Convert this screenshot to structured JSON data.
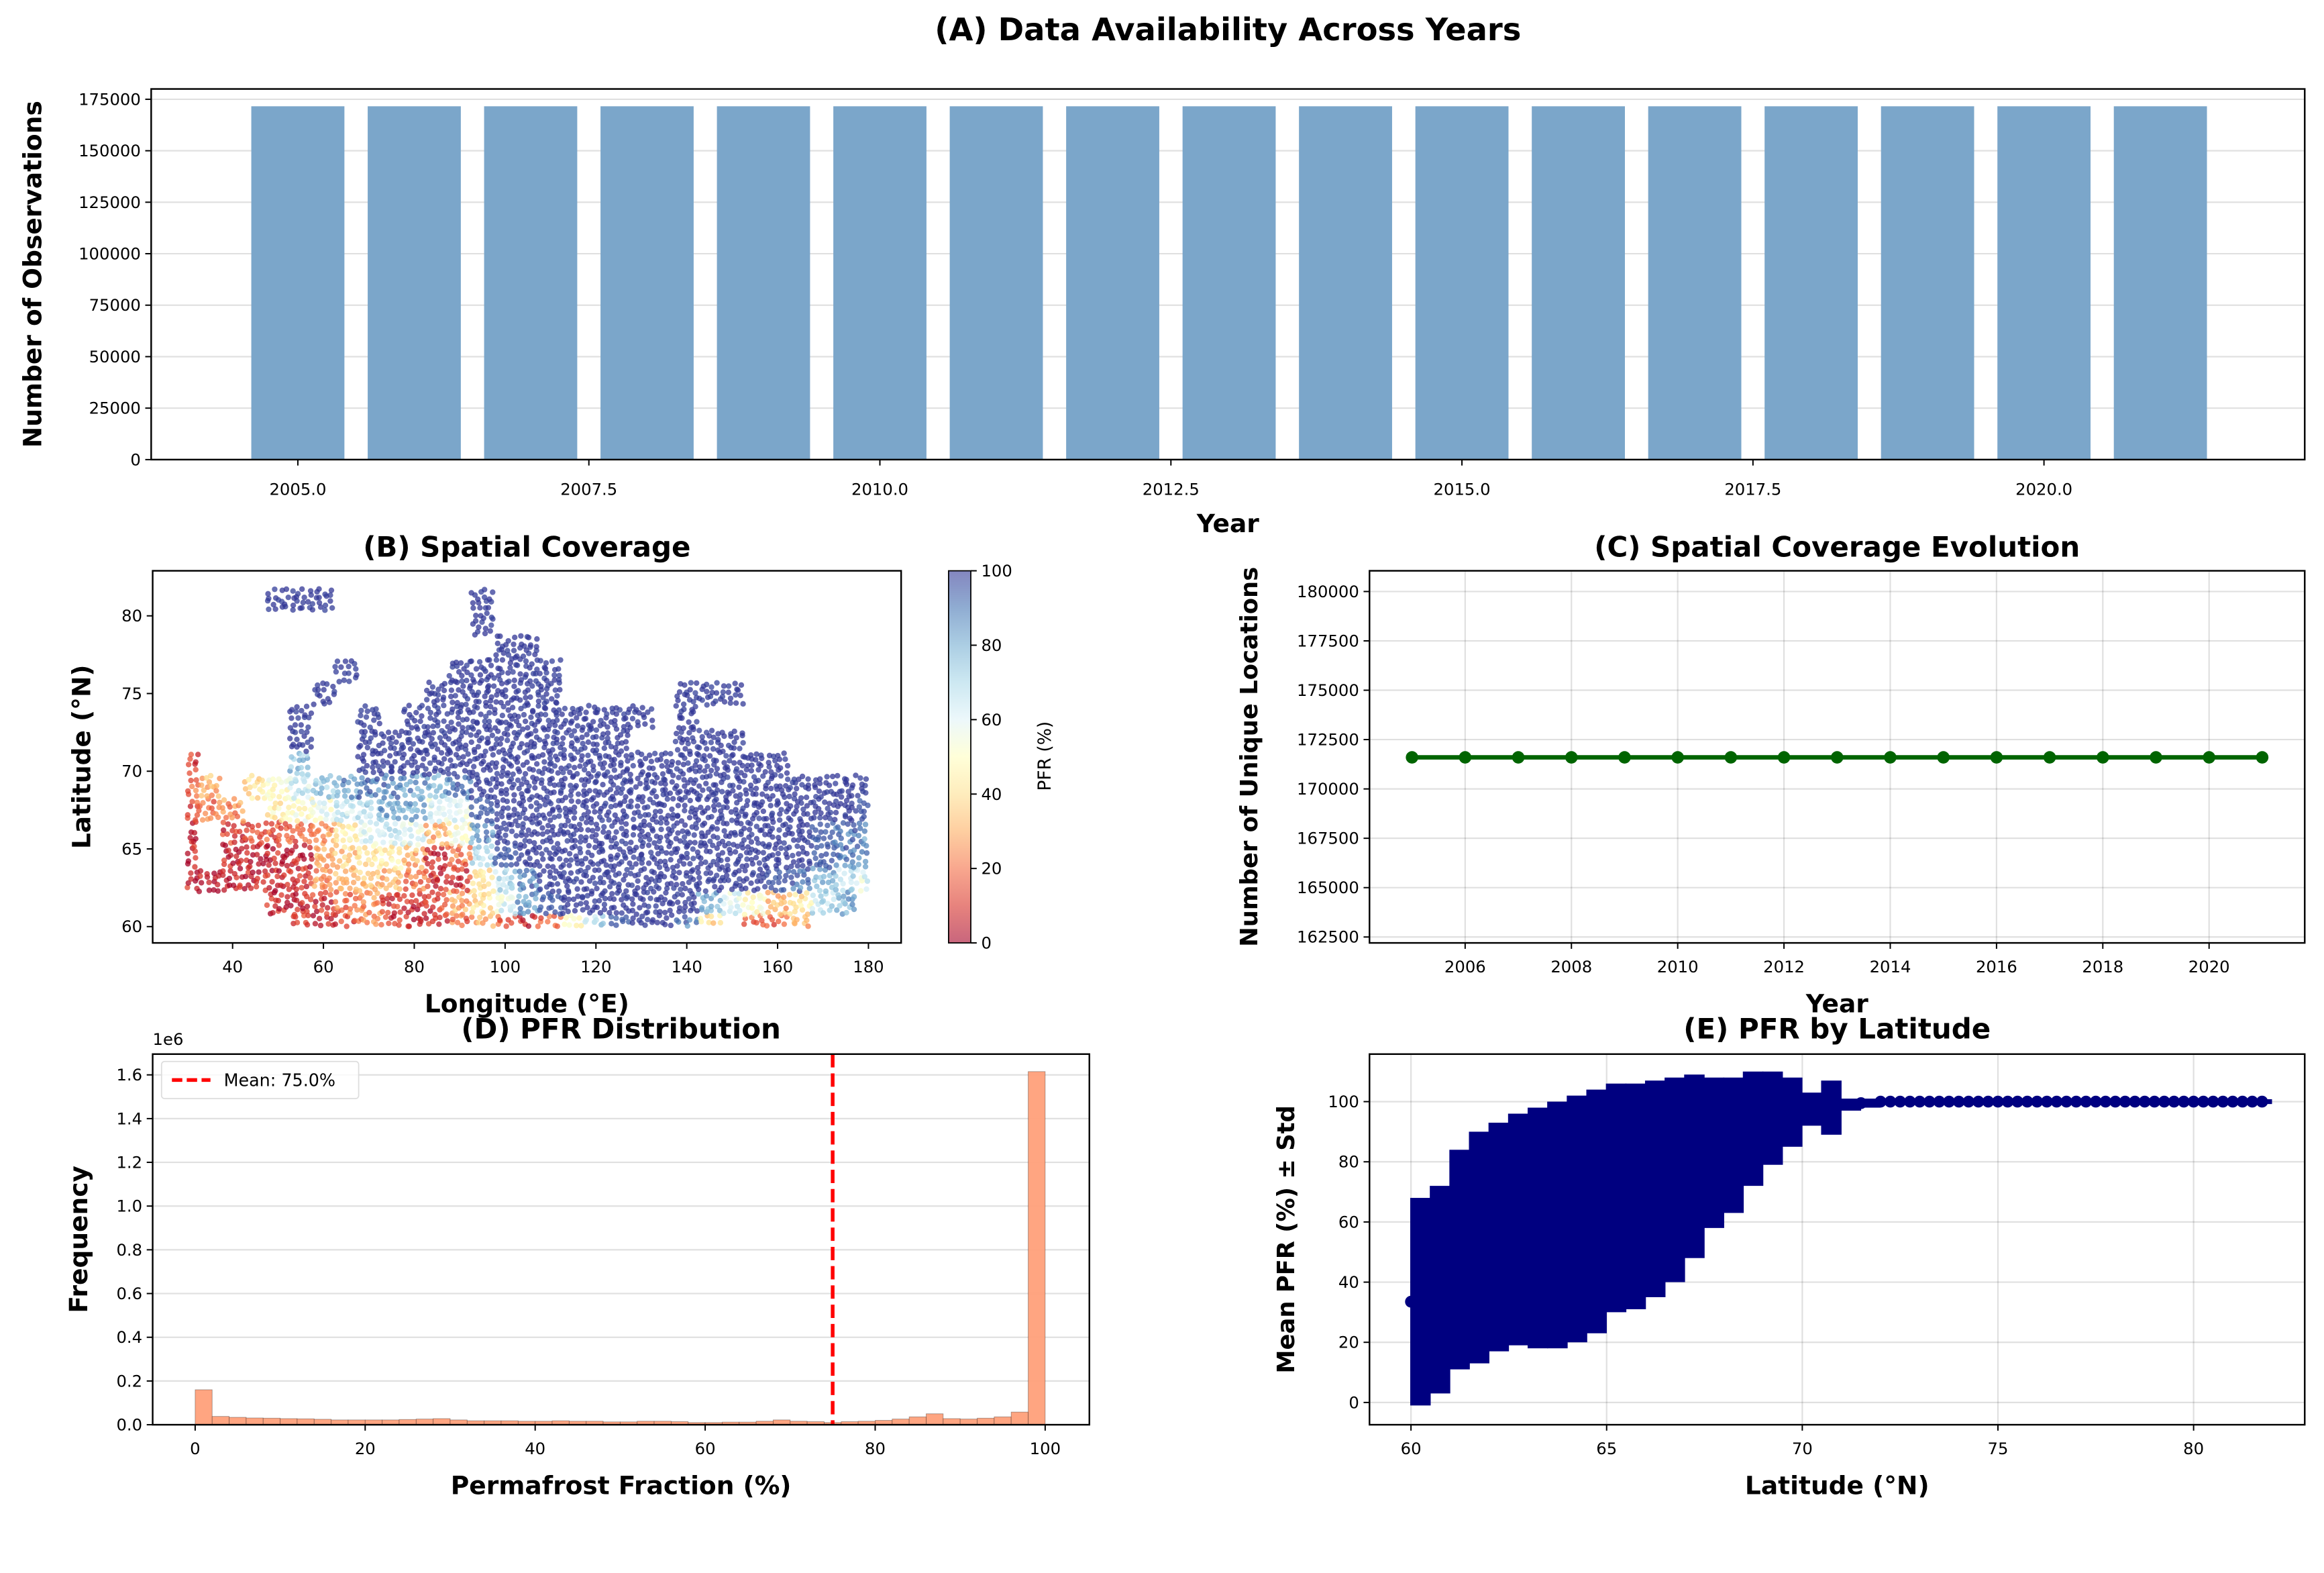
{
  "chart_data": [
    {
      "panel": "A",
      "type": "bar",
      "title": "(A) Data Availability Across Years",
      "xlabel": "Year",
      "ylabel": "Number of Observations",
      "categories": [
        2005,
        2006,
        2007,
        2008,
        2009,
        2010,
        2011,
        2012,
        2013,
        2014,
        2015,
        2016,
        2017,
        2018,
        2019,
        2020,
        2021
      ],
      "values": [
        171600,
        171600,
        171600,
        171600,
        171600,
        171600,
        171600,
        171600,
        171600,
        171600,
        171600,
        171600,
        171600,
        171600,
        171600,
        171600,
        171600
      ],
      "xlim": [
        2003.74,
        2022.24
      ],
      "ylim": [
        0,
        180000
      ],
      "xticks": [
        2005,
        2007.5,
        2010,
        2012.5,
        2015,
        2017.5,
        2020
      ],
      "xtick_labels": [
        "2005.0",
        "2007.5",
        "2010.0",
        "2012.5",
        "2015.0",
        "2017.5",
        "2020.0"
      ],
      "yticks": [
        0,
        25000,
        50000,
        75000,
        100000,
        125000,
        150000,
        175000
      ],
      "ytick_labels": [
        "0",
        "25000",
        "50000",
        "75000",
        "100000",
        "125000",
        "150000",
        "175000"
      ],
      "grid": "y",
      "color": "#7BA6CA"
    },
    {
      "panel": "B",
      "type": "scatter",
      "title": "(B) Spatial Coverage",
      "xlabel": "Longitude (°E)",
      "ylabel": "Latitude (°N)",
      "xlim": [
        22.4,
        187.2
      ],
      "ylim": [
        58.95,
        82.9
      ],
      "xticks": [
        40,
        60,
        80,
        100,
        120,
        140,
        160,
        180
      ],
      "xtick_labels": [
        "40",
        "60",
        "80",
        "100",
        "120",
        "140",
        "160",
        "180"
      ],
      "yticks": [
        60,
        65,
        70,
        75,
        80
      ],
      "ytick_labels": [
        "60",
        "65",
        "70",
        "75",
        "80"
      ],
      "grid": "none",
      "colormap": "RdYlBu",
      "colorbar": {
        "label": "PFR (%)",
        "range": [
          0,
          100
        ],
        "ticks": [
          0,
          20,
          40,
          60,
          80,
          100
        ],
        "tick_labels": [
          "0",
          "20",
          "40",
          "60",
          "80",
          "100"
        ]
      },
      "lats": [
        60,
        61.5,
        63,
        64.5,
        66,
        67.5,
        69,
        70.5,
        72,
        73.5,
        75,
        76.5,
        78,
        79.5,
        81
      ],
      "lons": [
        30,
        35,
        40,
        45,
        50,
        55,
        60,
        65,
        70,
        75,
        80,
        85,
        90,
        95,
        100,
        105,
        110,
        115,
        120,
        125,
        130,
        135,
        140,
        145,
        150,
        155,
        160,
        165,
        170,
        175,
        180
      ],
      "pfr_grid": [
        [
          null,
          null,
          null,
          null,
          null,
          10,
          5,
          10,
          20,
          10,
          5,
          5,
          20,
          30,
          15,
          10,
          15,
          50,
          70,
          95,
          100,
          100,
          90,
          40,
          null,
          20,
          15,
          30,
          null,
          null,
          null
        ],
        [
          null,
          null,
          null,
          null,
          5,
          5,
          8,
          20,
          25,
          10,
          5,
          10,
          30,
          40,
          60,
          85,
          95,
          100,
          100,
          100,
          100,
          100,
          100,
          80,
          60,
          50,
          30,
          40,
          70,
          80,
          null
        ],
        [
          5,
          5,
          5,
          5,
          5,
          8,
          25,
          30,
          35,
          30,
          20,
          10,
          10,
          40,
          70,
          90,
          100,
          100,
          100,
          100,
          100,
          100,
          100,
          100,
          100,
          100,
          95,
          90,
          80,
          70,
          60
        ],
        [
          5,
          null,
          5,
          5,
          5,
          5,
          30,
          35,
          40,
          45,
          30,
          10,
          20,
          70,
          95,
          100,
          100,
          100,
          100,
          100,
          100,
          100,
          100,
          100,
          100,
          100,
          100,
          100,
          95,
          90,
          90
        ],
        [
          5,
          null,
          10,
          10,
          15,
          15,
          25,
          45,
          60,
          65,
          60,
          30,
          50,
          85,
          100,
          100,
          100,
          100,
          100,
          100,
          100,
          100,
          100,
          100,
          100,
          100,
          100,
          100,
          95,
          90,
          85
        ],
        [
          15,
          20,
          25,
          null,
          45,
          50,
          55,
          65,
          70,
          80,
          80,
          60,
          60,
          95,
          100,
          100,
          100,
          100,
          100,
          100,
          100,
          100,
          100,
          100,
          100,
          100,
          100,
          100,
          100,
          100,
          95
        ],
        [
          20,
          30,
          null,
          40,
          50,
          65,
          75,
          85,
          90,
          90,
          85,
          80,
          90,
          100,
          100,
          100,
          100,
          100,
          100,
          100,
          100,
          100,
          100,
          100,
          100,
          100,
          100,
          100,
          100,
          100,
          100
        ],
        [
          10,
          null,
          null,
          null,
          null,
          75,
          null,
          null,
          100,
          100,
          100,
          100,
          100,
          100,
          100,
          100,
          100,
          100,
          100,
          100,
          100,
          100,
          100,
          100,
          100,
          100,
          100,
          null,
          null,
          null,
          null
        ],
        [
          null,
          null,
          null,
          null,
          null,
          100,
          null,
          null,
          100,
          100,
          100,
          100,
          100,
          100,
          100,
          100,
          100,
          100,
          100,
          100,
          null,
          null,
          100,
          100,
          100,
          null,
          null,
          null,
          null,
          null,
          null
        ],
        [
          null,
          null,
          null,
          null,
          null,
          100,
          null,
          null,
          100,
          null,
          100,
          100,
          100,
          100,
          100,
          100,
          100,
          100,
          100,
          100,
          100,
          null,
          100,
          null,
          null,
          null,
          null,
          null,
          null,
          null,
          null
        ],
        [
          null,
          null,
          null,
          null,
          null,
          null,
          100,
          null,
          null,
          null,
          null,
          100,
          100,
          100,
          100,
          100,
          100,
          null,
          null,
          null,
          null,
          null,
          100,
          100,
          100,
          null,
          null,
          null,
          null,
          null,
          null
        ],
        [
          null,
          null,
          null,
          null,
          null,
          null,
          null,
          100,
          null,
          null,
          null,
          null,
          100,
          100,
          100,
          100,
          100,
          null,
          null,
          null,
          null,
          null,
          null,
          null,
          null,
          null,
          null,
          null,
          null,
          null,
          null
        ],
        [
          null,
          null,
          null,
          null,
          null,
          null,
          null,
          null,
          null,
          null,
          null,
          null,
          null,
          null,
          100,
          100,
          null,
          null,
          null,
          null,
          null,
          null,
          null,
          null,
          null,
          null,
          null,
          null,
          null,
          null,
          null
        ],
        [
          null,
          null,
          null,
          null,
          null,
          null,
          null,
          null,
          null,
          null,
          null,
          null,
          null,
          100,
          null,
          null,
          null,
          null,
          null,
          null,
          null,
          null,
          null,
          null,
          null,
          null,
          null,
          null,
          null,
          null,
          null
        ],
        [
          null,
          null,
          null,
          null,
          100,
          100,
          100,
          null,
          null,
          null,
          null,
          null,
          null,
          100,
          null,
          null,
          null,
          null,
          null,
          null,
          null,
          null,
          null,
          null,
          null,
          null,
          null,
          null,
          null,
          null,
          null
        ]
      ]
    },
    {
      "panel": "C",
      "type": "line",
      "title": "(C) Spatial Coverage Evolution",
      "xlabel": "Year",
      "ylabel": "Number of Unique Locations",
      "x": [
        2005,
        2006,
        2007,
        2008,
        2009,
        2010,
        2011,
        2012,
        2013,
        2014,
        2015,
        2016,
        2017,
        2018,
        2019,
        2020,
        2021
      ],
      "y": [
        171600,
        171600,
        171600,
        171600,
        171600,
        171600,
        171600,
        171600,
        171600,
        171600,
        171600,
        171600,
        171600,
        171600,
        171600,
        171600,
        171600
      ],
      "xlim": [
        2004.2,
        2021.8
      ],
      "ylim": [
        162200,
        181050
      ],
      "xticks": [
        2006,
        2008,
        2010,
        2012,
        2014,
        2016,
        2018,
        2020
      ],
      "xtick_labels": [
        "2006",
        "2008",
        "2010",
        "2012",
        "2014",
        "2016",
        "2018",
        "2020"
      ],
      "yticks": [
        162500,
        165000,
        167500,
        170000,
        172500,
        175000,
        177500,
        180000
      ],
      "ytick_labels": [
        "162500",
        "165000",
        "167500",
        "170000",
        "172500",
        "175000",
        "177500",
        "180000"
      ],
      "grid": "both",
      "color": "#006400"
    },
    {
      "panel": "D",
      "type": "bar",
      "subtype": "histogram",
      "title": "(D) PFR Distribution",
      "xlabel": "Permafrost Fraction (%)",
      "ylabel": "Frequency",
      "y_scale_label": "1e6",
      "bin_start": 0,
      "bin_width": 2,
      "values": [
        0.16,
        0.038,
        0.034,
        0.031,
        0.03,
        0.028,
        0.027,
        0.025,
        0.022,
        0.022,
        0.022,
        0.022,
        0.024,
        0.026,
        0.028,
        0.022,
        0.018,
        0.018,
        0.018,
        0.016,
        0.016,
        0.018,
        0.016,
        0.016,
        0.013,
        0.013,
        0.016,
        0.016,
        0.014,
        0.01,
        0.01,
        0.012,
        0.012,
        0.016,
        0.022,
        0.016,
        0.014,
        0.01,
        0.014,
        0.016,
        0.02,
        0.026,
        0.036,
        0.05,
        0.028,
        0.026,
        0.03,
        0.036,
        0.058,
        1.615
      ],
      "xlim": [
        -5,
        105.2
      ],
      "ylim": [
        0,
        1.695
      ],
      "xticks": [
        0,
        20,
        40,
        60,
        80,
        100
      ],
      "xtick_labels": [
        "0",
        "20",
        "40",
        "60",
        "80",
        "100"
      ],
      "yticks": [
        0,
        0.2,
        0.4,
        0.6,
        0.8,
        1.0,
        1.2,
        1.4,
        1.6
      ],
      "ytick_labels": [
        "0.0",
        "0.2",
        "0.4",
        "0.6",
        "0.8",
        "1.0",
        "1.2",
        "1.4",
        "1.6"
      ],
      "grid": "y",
      "color": "#FFA07A",
      "mean_line": {
        "x": 75.0,
        "color": "#FF0000",
        "legend": "Mean: 75.0%"
      },
      "legend_position": "upper-left"
    },
    {
      "panel": "E",
      "type": "scatter",
      "subtype": "errorbar",
      "title": "(E) PFR by Latitude",
      "xlabel": "Latitude (°N)",
      "ylabel": "Mean PFR (%) ± Std",
      "lat": [
        60,
        60.5,
        61,
        61.5,
        62,
        62.5,
        63,
        63.5,
        64,
        64.5,
        65,
        65.5,
        66,
        66.5,
        67,
        67.5,
        68,
        68.5,
        69,
        69.5,
        70,
        70.5,
        71,
        71.5,
        72,
        72.25,
        72.5,
        72.75,
        73,
        73.25,
        73.5,
        73.75,
        74,
        74.25,
        74.5,
        74.75,
        75,
        75.25,
        75.5,
        75.75,
        76,
        76.25,
        76.5,
        76.75,
        77,
        77.25,
        77.5,
        77.75,
        78,
        78.25,
        78.5,
        78.75,
        79,
        79.25,
        79.5,
        79.75,
        80,
        80.25,
        80.5,
        80.75,
        81,
        81.25,
        81.5,
        81.75
      ],
      "mean": [
        33.5,
        37.5,
        47.5,
        51.5,
        55,
        57.5,
        58,
        59,
        61,
        63.5,
        68,
        68.5,
        71,
        74,
        78.5,
        83,
        85.5,
        91,
        94.5,
        96.5,
        97.5,
        98,
        99,
        99.5,
        100,
        100,
        100,
        100,
        100,
        100,
        100,
        100,
        100,
        100,
        100,
        100,
        100,
        100,
        100,
        100,
        100,
        100,
        100,
        100,
        100,
        100,
        100,
        100,
        100,
        100,
        100,
        100,
        100,
        100,
        100,
        100,
        100,
        100,
        100,
        100,
        100,
        100,
        100,
        100
      ],
      "std": [
        34.5,
        34.5,
        36.5,
        38.5,
        38,
        38.5,
        40,
        41,
        41,
        40.5,
        38,
        37.5,
        36,
        34,
        30.5,
        25,
        22.5,
        19,
        15.5,
        11.5,
        5.5,
        9,
        2,
        1.5,
        0.8,
        0.8,
        0.8,
        0.8,
        0.8,
        0.8,
        0.8,
        0.8,
        0.8,
        0.8,
        0.8,
        0.8,
        0.8,
        0.8,
        0.8,
        0.8,
        0.8,
        0.8,
        0.8,
        0.8,
        0.8,
        0.8,
        0.8,
        0.8,
        0.8,
        0.8,
        0.8,
        0.8,
        0.8,
        0.8,
        0.8,
        0.8,
        0.8,
        0.8,
        0.8,
        0.8,
        0.8,
        0.8,
        0.8,
        0.8
      ],
      "xlim": [
        58.94,
        82.84
      ],
      "ylim": [
        -7.4,
        115.8
      ],
      "xticks": [
        60,
        65,
        70,
        75,
        80
      ],
      "xtick_labels": [
        "60",
        "65",
        "70",
        "75",
        "80"
      ],
      "yticks": [
        0,
        20,
        40,
        60,
        80,
        100
      ],
      "ytick_labels": [
        "0",
        "20",
        "40",
        "60",
        "80",
        "100"
      ],
      "grid": "both",
      "color": "#000080"
    }
  ]
}
